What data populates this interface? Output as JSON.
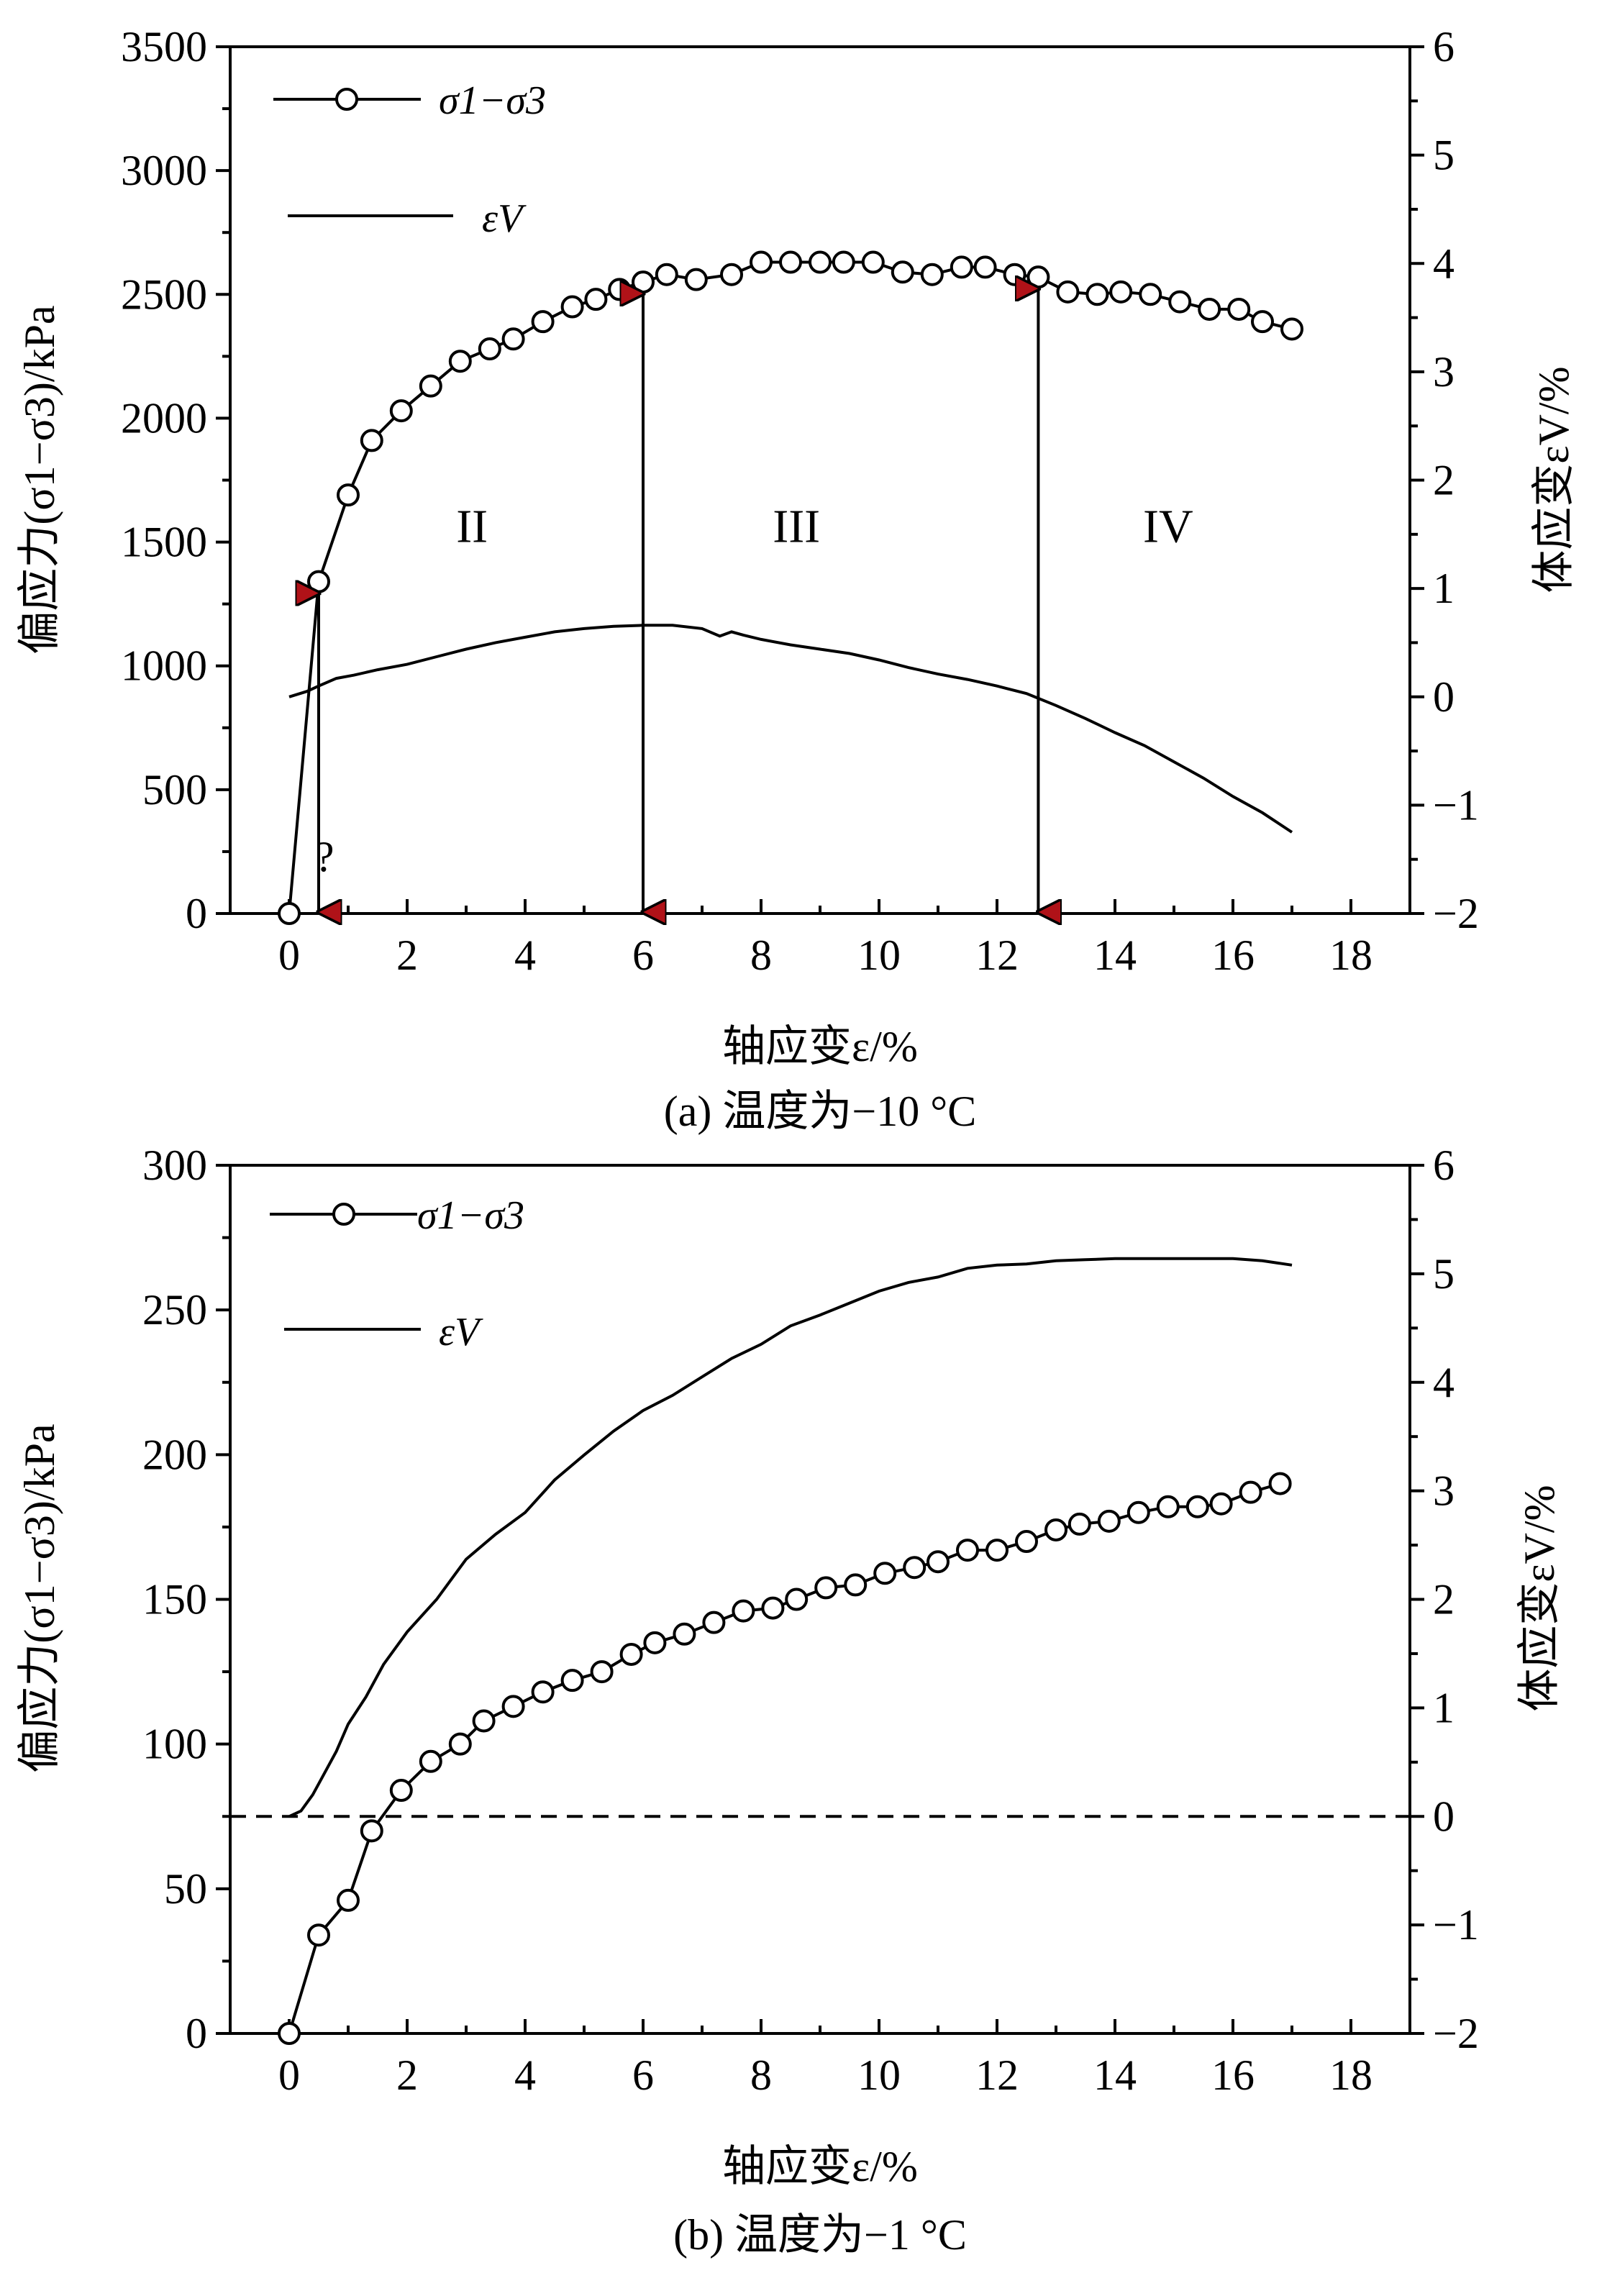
{
  "chart_data": [
    {
      "type": "line",
      "caption": "(a) 温度为−10 °C",
      "xlabel": "轴应变ε/%",
      "ylabel": "偏应力(σ1−σ3)/kPa",
      "y2label": "体应变εV/%",
      "xlim": [
        -1,
        19
      ],
      "xticks": [
        0,
        2,
        4,
        6,
        8,
        10,
        12,
        14,
        16,
        18
      ],
      "ylim": [
        0,
        3500
      ],
      "yticks": [
        0,
        500,
        1000,
        1500,
        2000,
        2500,
        3000,
        3500
      ],
      "y2lim": [
        -2,
        6
      ],
      "y2ticks": [
        -2,
        -1,
        0,
        1,
        2,
        3,
        4,
        5,
        6
      ],
      "legend_position": "top-left",
      "legend": [
        "σ1−σ3",
        "εV"
      ],
      "series": [
        {
          "name": "σ1−σ3",
          "axis": "left",
          "marker": "circle",
          "x": [
            0,
            0.5,
            1.0,
            1.4,
            1.9,
            2.4,
            2.9,
            3.4,
            3.8,
            4.3,
            4.8,
            5.2,
            5.6,
            6.0,
            6.4,
            6.9,
            7.5,
            8.0,
            8.5,
            9.0,
            9.4,
            9.9,
            10.4,
            10.9,
            11.4,
            11.8,
            12.3,
            12.7,
            13.2,
            13.7,
            14.1,
            14.6,
            15.1,
            15.6,
            16.1,
            16.5,
            17.0
          ],
          "values": [
            0,
            1340,
            1690,
            1910,
            2030,
            2130,
            2230,
            2280,
            2320,
            2390,
            2450,
            2480,
            2520,
            2550,
            2580,
            2560,
            2580,
            2630,
            2630,
            2630,
            2630,
            2630,
            2590,
            2580,
            2610,
            2610,
            2580,
            2570,
            2510,
            2500,
            2510,
            2500,
            2470,
            2440,
            2440,
            2390,
            2360
          ]
        },
        {
          "name": "εV",
          "axis": "right",
          "marker": "none",
          "x": [
            0,
            0.3,
            0.5,
            0.8,
            1.1,
            1.5,
            2.0,
            2.5,
            3.0,
            3.5,
            4.0,
            4.5,
            5.0,
            5.5,
            6.0,
            6.5,
            7.0,
            7.3,
            7.5,
            7.7,
            8.0,
            8.5,
            9.0,
            9.5,
            10.0,
            10.5,
            11.0,
            11.5,
            12.0,
            12.5,
            13.0,
            13.5,
            14.0,
            14.5,
            15.0,
            15.5,
            16.0,
            16.5,
            17.0
          ],
          "values": [
            0,
            0.05,
            0.1,
            0.17,
            0.2,
            0.25,
            0.3,
            0.37,
            0.44,
            0.5,
            0.55,
            0.6,
            0.63,
            0.65,
            0.66,
            0.66,
            0.63,
            0.56,
            0.6,
            0.57,
            0.53,
            0.48,
            0.44,
            0.4,
            0.34,
            0.27,
            0.21,
            0.16,
            0.1,
            0.03,
            -0.08,
            -0.2,
            -0.33,
            -0.45,
            -0.6,
            -0.75,
            -0.92,
            -1.07,
            -1.25
          ]
        }
      ],
      "annotations": {
        "regions": [
          {
            "label": "II",
            "x": 3.1,
            "y": 1500
          },
          {
            "label": "III",
            "x": 8.6,
            "y": 1500
          },
          {
            "label": "IV",
            "x": 14.9,
            "y": 1500
          }
        ],
        "question_mark": {
          "label": "?",
          "x": 0.6,
          "y": 230
        },
        "arrows": [
          {
            "x": 0.5,
            "y_top": 1340,
            "y_bottom": 0,
            "head_color": "#b01218"
          },
          {
            "x": 6.0,
            "y_top": 2550,
            "y_bottom": 0,
            "head_color": "#b01218"
          },
          {
            "x": 12.7,
            "y_top": 2570,
            "y_bottom": 0,
            "head_color": "#b01218"
          }
        ]
      }
    },
    {
      "type": "line",
      "caption": "(b) 温度为−1 °C",
      "xlabel": "轴应变ε/%",
      "ylabel": "偏应力(σ1−σ3)/kPa",
      "y2label": "体应变εV/%",
      "xlim": [
        -1,
        19
      ],
      "xticks": [
        0,
        2,
        4,
        6,
        8,
        10,
        12,
        14,
        16,
        18
      ],
      "ylim": [
        0,
        300
      ],
      "yticks": [
        0,
        50,
        100,
        150,
        200,
        250,
        300
      ],
      "y2lim": [
        -2,
        6
      ],
      "y2ticks": [
        -2,
        -1,
        0,
        1,
        2,
        3,
        4,
        5,
        6
      ],
      "legend_position": "top-left",
      "legend": [
        "σ1−σ3",
        "εV"
      ],
      "series": [
        {
          "name": "σ1−σ3",
          "axis": "left",
          "marker": "circle",
          "x": [
            0,
            0.5,
            1.0,
            1.4,
            1.9,
            2.4,
            2.9,
            3.3,
            3.8,
            4.3,
            4.8,
            5.3,
            5.8,
            6.2,
            6.7,
            7.2,
            7.7,
            8.2,
            8.6,
            9.1,
            9.6,
            10.1,
            10.6,
            11.0,
            11.5,
            12.0,
            12.5,
            13.0,
            13.4,
            13.9,
            14.4,
            14.9,
            15.4,
            15.8,
            16.3,
            16.8
          ],
          "values": [
            0,
            34,
            46,
            70,
            84,
            94,
            100,
            108,
            113,
            118,
            122,
            125,
            131,
            135,
            138,
            142,
            146,
            147,
            150,
            154,
            155,
            159,
            161,
            163,
            167,
            167,
            170,
            174,
            176,
            177,
            180,
            182,
            182,
            183,
            187,
            190
          ]
        },
        {
          "name": "εV",
          "axis": "right",
          "marker": "none",
          "x": [
            0,
            0.2,
            0.4,
            0.6,
            0.8,
            1.0,
            1.3,
            1.6,
            2.0,
            2.5,
            3.0,
            3.5,
            4.0,
            4.5,
            5.0,
            5.5,
            6.0,
            6.5,
            7.0,
            7.5,
            8.0,
            8.5,
            9.0,
            9.5,
            10.0,
            10.5,
            11.0,
            11.5,
            12.0,
            12.5,
            13.0,
            13.5,
            14.0,
            14.5,
            15.0,
            15.5,
            16.0,
            16.5,
            17.0
          ],
          "values": [
            0,
            0.05,
            0.2,
            0.4,
            0.6,
            0.85,
            1.1,
            1.4,
            1.7,
            2.0,
            2.37,
            2.6,
            2.8,
            3.1,
            3.33,
            3.55,
            3.74,
            3.88,
            4.05,
            4.22,
            4.35,
            4.52,
            4.62,
            4.73,
            4.84,
            4.92,
            4.97,
            5.05,
            5.08,
            5.09,
            5.12,
            5.13,
            5.14,
            5.14,
            5.14,
            5.14,
            5.14,
            5.12,
            5.08
          ]
        },
        {
          "name": "",
          "axis": "right",
          "marker": "none",
          "style": "dashed",
          "x": [
            -1,
            19
          ],
          "values": [
            0,
            0
          ]
        }
      ]
    }
  ]
}
